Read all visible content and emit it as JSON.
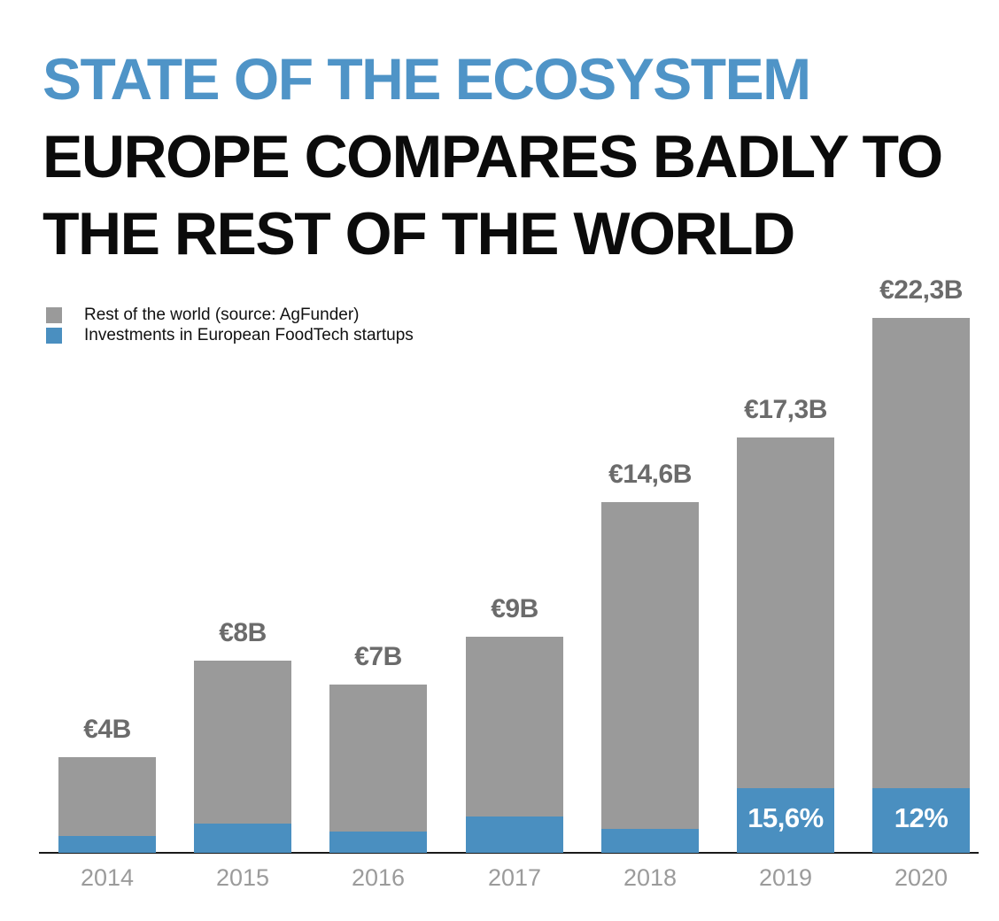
{
  "title": {
    "line1": "STATE OF THE ECOSYSTEM",
    "line2": "EUROPE COMPARES BADLY TO",
    "line3": "THE REST OF THE WORLD"
  },
  "colors": {
    "title_accent": "#4f94c7",
    "bar_rest_gray": "#9a9a9a",
    "bar_europe_blue": "#4a8fc0",
    "value_label_gray": "#6b6b6b",
    "tick_label_gray": "#9b9b9b",
    "pct_label_white": "#ffffff"
  },
  "legend": {
    "items": [
      {
        "label": "Rest of the world (source: AgFunder)",
        "color": "#9a9a9a"
      },
      {
        "label": "Investments in European FoodTech startups",
        "color": "#4a8fc0"
      }
    ]
  },
  "chart_data": {
    "type": "bar",
    "stacked": true,
    "grid": false,
    "legend_position": "top-left",
    "categories": [
      "2014",
      "2015",
      "2016",
      "2017",
      "2018",
      "2019",
      "2020"
    ],
    "series": [
      {
        "name": "Rest of the world (source: AgFunder)",
        "color": "#9a9a9a",
        "values": [
          3.3,
          6.8,
          6.1,
          7.5,
          13.6,
          14.6,
          19.6
        ]
      },
      {
        "name": "Investments in European FoodTech startups",
        "color": "#4a8fc0",
        "values": [
          0.7,
          1.2,
          0.9,
          1.5,
          1.0,
          2.7,
          2.7
        ]
      }
    ],
    "totals": [
      4,
      8,
      7,
      9,
      14.6,
      17.3,
      22.3
    ],
    "total_labels": [
      "€4B",
      "€8B",
      "€7B",
      "€9B",
      "€14,6B",
      "€17,3B",
      "€22,3B"
    ],
    "percent_labels": [
      "",
      "",
      "",
      "",
      "",
      "15,6%",
      "12%"
    ],
    "unit": "EUR billions",
    "ylim": [
      0,
      24
    ]
  }
}
